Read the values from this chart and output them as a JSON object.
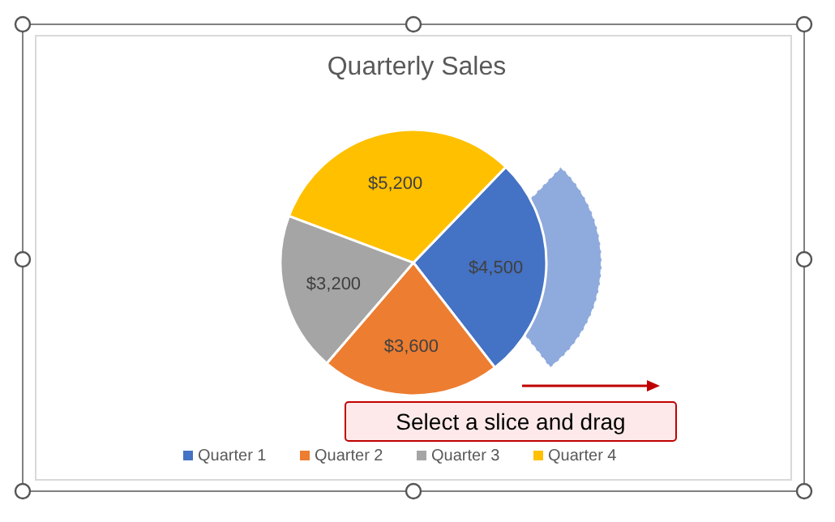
{
  "chart_data": {
    "type": "pie",
    "title": "Quarterly Sales",
    "categories": [
      "Quarter 1",
      "Quarter 2",
      "Quarter 3",
      "Quarter 4"
    ],
    "values": [
      4500,
      3600,
      3200,
      5200
    ],
    "colors": [
      "#4472c4",
      "#ed7d31",
      "#a5a5a5",
      "#ffc000"
    ],
    "value_labels": [
      "$4,500",
      "$3,600",
      "$3,200",
      "$5,200"
    ],
    "legend": "bottom",
    "annotations": [
      "Select a slice and drag"
    ]
  }
}
